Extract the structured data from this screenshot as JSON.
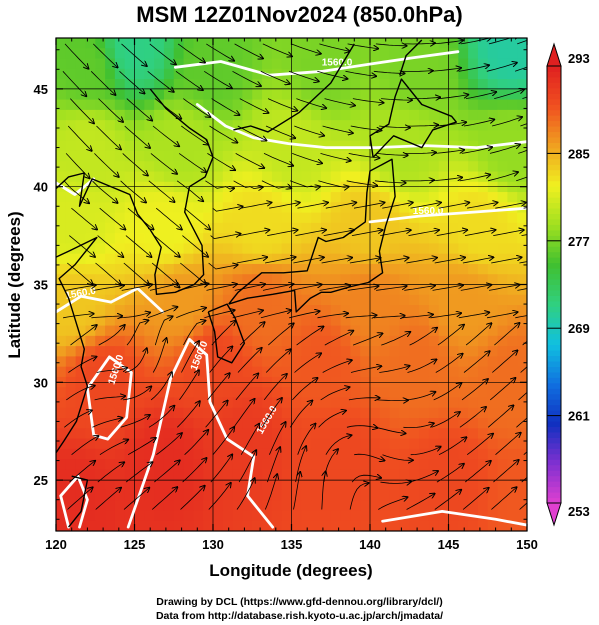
{
  "title": "MSM 12Z01Nov2024 (850.0hPa)",
  "x_axis": {
    "label": "Longitude (degrees)",
    "range": [
      120,
      150
    ],
    "ticks": [
      120,
      125,
      130,
      135,
      140,
      145,
      150
    ],
    "tick_labels": [
      "120",
      "125",
      "130",
      "135",
      "140",
      "145",
      "150"
    ]
  },
  "y_axis": {
    "label": "Latitude  (degrees)",
    "range": [
      22.4,
      47.6
    ],
    "ticks": [
      25,
      30,
      35,
      40,
      45
    ],
    "tick_labels": [
      "25",
      "30",
      "35",
      "40",
      "45"
    ]
  },
  "colorbar": {
    "range": [
      253,
      293
    ],
    "ticks": [
      253,
      261,
      269,
      277,
      285,
      293
    ],
    "tick_labels": [
      "253",
      "261",
      "269",
      "277",
      "285",
      "293"
    ],
    "colors": [
      "#e040d0",
      "#8030d0",
      "#1030c0",
      "#1070e0",
      "#10c0e0",
      "#30d080",
      "#40c030",
      "#a0e020",
      "#f0f020",
      "#f0a020",
      "#f05020",
      "#e02020"
    ]
  },
  "contours": {
    "labels": [
      "1560.0",
      "1560.0",
      "1560.0",
      "1560.0",
      "1560.0",
      "1560.0"
    ],
    "color": "#ffffff"
  },
  "chart_data": {
    "type": "heatmap",
    "title": "MSM 12Z01Nov2024 (850.0hPa)",
    "xlabel": "Longitude (degrees)",
    "ylabel": "Latitude  (degrees)",
    "xlim": [
      120,
      150
    ],
    "ylim": [
      22.4,
      47.6
    ],
    "colorbar_range": [
      253,
      293
    ],
    "temperature_anchors": [
      {
        "lon": 121,
        "lat": 24,
        "value": 292
      },
      {
        "lon": 127,
        "lat": 26,
        "value": 292
      },
      {
        "lon": 132,
        "lat": 27,
        "value": 291
      },
      {
        "lon": 138,
        "lat": 26,
        "value": 290
      },
      {
        "lon": 145,
        "lat": 25,
        "value": 290
      },
      {
        "lon": 150,
        "lat": 24,
        "value": 289
      },
      {
        "lon": 123,
        "lat": 30,
        "value": 290
      },
      {
        "lon": 130,
        "lat": 31,
        "value": 290
      },
      {
        "lon": 137,
        "lat": 31,
        "value": 289
      },
      {
        "lon": 143,
        "lat": 31,
        "value": 288
      },
      {
        "lon": 149,
        "lat": 30,
        "value": 288
      },
      {
        "lon": 121,
        "lat": 34,
        "value": 284
      },
      {
        "lon": 128,
        "lat": 34,
        "value": 286
      },
      {
        "lon": 133,
        "lat": 34,
        "value": 288
      },
      {
        "lon": 140,
        "lat": 34,
        "value": 287
      },
      {
        "lon": 146,
        "lat": 34,
        "value": 286
      },
      {
        "lon": 121,
        "lat": 38,
        "value": 281
      },
      {
        "lon": 127,
        "lat": 38,
        "value": 282
      },
      {
        "lon": 133,
        "lat": 38,
        "value": 283
      },
      {
        "lon": 140,
        "lat": 38,
        "value": 284
      },
      {
        "lon": 147,
        "lat": 38,
        "value": 283
      },
      {
        "lon": 122,
        "lat": 42,
        "value": 280
      },
      {
        "lon": 128,
        "lat": 42,
        "value": 279
      },
      {
        "lon": 135,
        "lat": 42,
        "value": 280
      },
      {
        "lon": 142,
        "lat": 42,
        "value": 279
      },
      {
        "lon": 149,
        "lat": 42,
        "value": 278
      },
      {
        "lon": 122,
        "lat": 46,
        "value": 276
      },
      {
        "lon": 125,
        "lat": 47,
        "value": 271
      },
      {
        "lon": 130,
        "lat": 46,
        "value": 276
      },
      {
        "lon": 137,
        "lat": 46,
        "value": 277
      },
      {
        "lon": 143,
        "lat": 46,
        "value": 277
      },
      {
        "lon": 149,
        "lat": 47,
        "value": 270
      }
    ],
    "legend": "colorbar-right",
    "grid": true
  },
  "credits": {
    "line1": "Drawing by DCL (https://www.gfd-dennou.org/library/dcl/)",
    "line2": "Data from http://database.rish.kyoto-u.ac.jp/arch/jmadata/"
  }
}
